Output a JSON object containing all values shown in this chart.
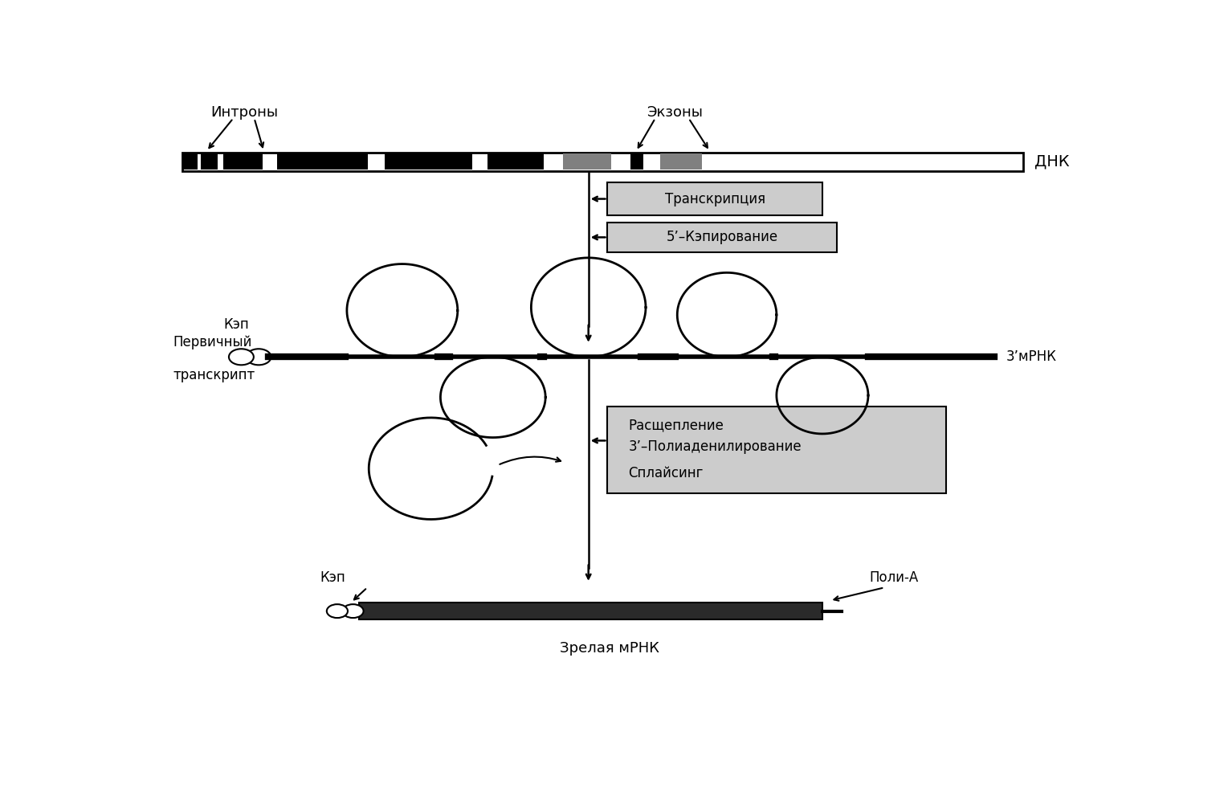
{
  "bg_color": "#ffffff",
  "text_color": "#000000",
  "dna_label": "ДНК",
  "introns_label": "Интроны",
  "exons_label": "Экзоны",
  "transcription_label": "Транскрипция",
  "capping_label": "5’–Кэпирование",
  "primary_label1": "Первичный",
  "primary_label2": "транскрипт",
  "kep_label": "Кэп",
  "mrna_3_label": "3’мРНК",
  "processing_label1": "Расщепление",
  "processing_label2": "3’–Полиаденилирование",
  "processing_label3": "Сплайсинг",
  "mature_label": "Зрелая мРНК",
  "kep_label2": "Кэп",
  "poly_a_label": "Поли-А"
}
